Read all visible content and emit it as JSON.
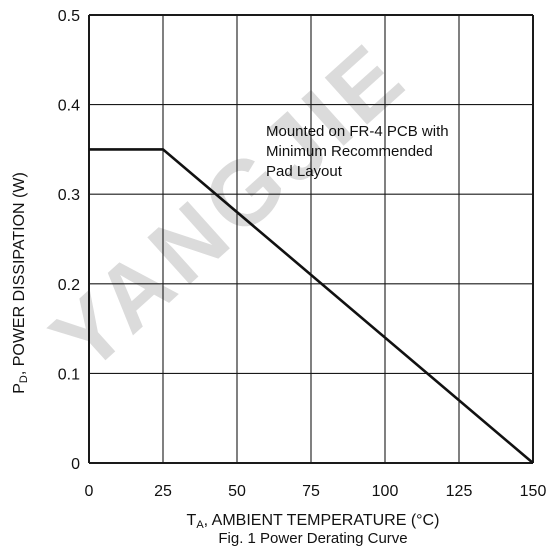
{
  "chart_data": {
    "type": "line",
    "title": "Fig. 1 Power Derating Curve",
    "xlabel": {
      "main": "T",
      "sub": "A",
      "rest": ", AMBIENT TEMPERATURE (°C)"
    },
    "ylabel": {
      "main": "P",
      "sub": "D",
      "rest": ", POWER DISSIPATION (W)"
    },
    "xlim": [
      0,
      150
    ],
    "ylim": [
      0,
      0.5
    ],
    "xticks": [
      0,
      25,
      50,
      75,
      100,
      125,
      150
    ],
    "xtick_labels": [
      "0",
      "25",
      "50",
      "75",
      "100",
      "125",
      "150"
    ],
    "yticks": [
      0,
      0.1,
      0.2,
      0.3,
      0.4,
      0.5
    ],
    "ytick_labels": [
      "0",
      "0.1",
      "0.2",
      "0.3",
      "0.4",
      "0.5"
    ],
    "grid": true,
    "series": [
      {
        "x": [
          0,
          25,
          150
        ],
        "y": [
          0.35,
          0.35,
          0
        ]
      }
    ],
    "annotation": {
      "lines": [
        "Mounted on FR-4 PCB with",
        "Minimum Recommended",
        "Pad Layout"
      ]
    },
    "watermark": "YANGJIE"
  },
  "colors": {
    "line": "#111111",
    "grid": "#1a1a1a",
    "watermark": "#cfcfcf"
  }
}
